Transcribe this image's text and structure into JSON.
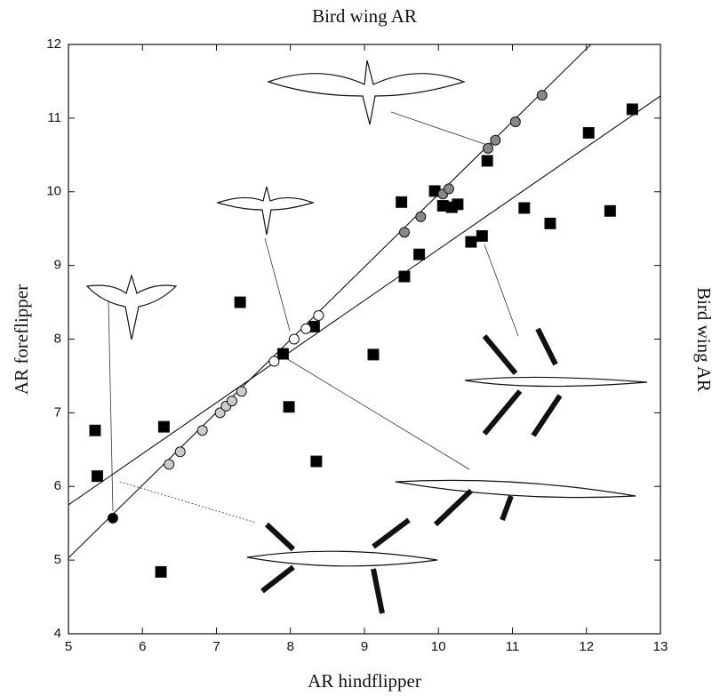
{
  "chart_data": {
    "type": "scatter",
    "title": "Bird wing AR",
    "x_label": "AR hindflipper",
    "y_label": "AR foreflipper",
    "y2_label": "Bird wing AR",
    "xlim": [
      5,
      13
    ],
    "ylim": [
      4,
      12
    ],
    "xticks": [
      5,
      6,
      7,
      8,
      9,
      10,
      11,
      12,
      13
    ],
    "yticks": [
      4,
      5,
      6,
      7,
      8,
      9,
      10,
      11,
      12
    ],
    "series": [
      {
        "color": "#000000",
        "marker": "square",
        "x": [
          5.36,
          5.39,
          6.29,
          6.25,
          7.32,
          7.9,
          7.98,
          8.35,
          8.32,
          9.12,
          9.5,
          9.54,
          9.74,
          9.95,
          10.06,
          10.18,
          10.26,
          10.44,
          10.59,
          10.66,
          11.16,
          11.51,
          12.03,
          12.32,
          12.62
        ],
        "values": [
          6.76,
          6.14,
          6.81,
          4.84,
          8.5,
          7.8,
          7.08,
          6.34,
          8.17,
          7.79,
          9.86,
          8.85,
          9.15,
          10.01,
          9.81,
          9.79,
          9.83,
          9.32,
          9.4,
          10.42,
          9.78,
          9.57,
          10.8,
          9.74,
          11.12
        ]
      },
      {
        "color": "#000000",
        "marker": "circle",
        "x": [
          5.6
        ],
        "values": [
          5.57
        ]
      },
      {
        "color": "#cccccc",
        "marker": "circle",
        "x": [
          6.36,
          6.51,
          6.81,
          7.05,
          7.13,
          7.21,
          7.34
        ],
        "values": [
          6.3,
          6.47,
          6.76,
          7.0,
          7.09,
          7.16,
          7.29
        ]
      },
      {
        "color": "#ffffff",
        "marker": "circle",
        "x": [
          7.78,
          8.05,
          8.21,
          8.38
        ],
        "values": [
          7.7,
          8.0,
          8.14,
          8.32
        ]
      },
      {
        "color": "#888888",
        "marker": "circle",
        "x": [
          9.54,
          9.76,
          10.06,
          10.14,
          10.67,
          10.77,
          11.04,
          11.4
        ],
        "values": [
          9.45,
          9.66,
          9.97,
          10.04,
          10.59,
          10.7,
          10.95,
          11.31
        ]
      }
    ],
    "lines": [
      {
        "x": [
          5,
          12.06
        ],
        "values": [
          5.03,
          12
        ]
      },
      {
        "x": [
          5,
          13
        ],
        "values": [
          5.75,
          11.3
        ]
      }
    ]
  }
}
